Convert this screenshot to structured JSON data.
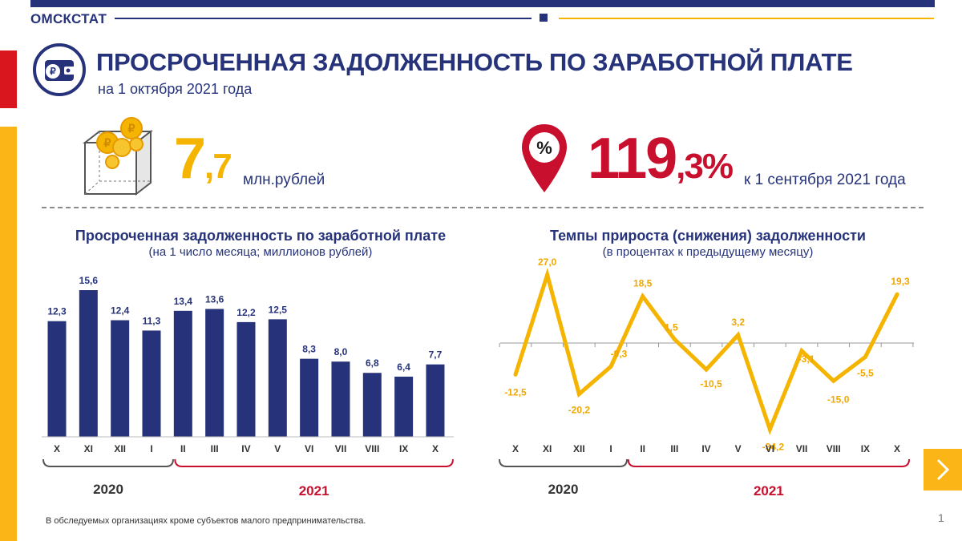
{
  "header": {
    "org": "ОМСКСТАТ"
  },
  "title": {
    "main": "ПРОСРОЧЕННАЯ ЗАДОЛЖЕННОСТЬ ПО ЗАРАБОТНОЙ ПЛАТЕ",
    "sub": "на 1 октября 2021 года"
  },
  "kpi": [
    {
      "int": "7",
      "dec": ",7",
      "unit": "млн.рублей"
    },
    {
      "int": "119",
      "dec": ",3%",
      "unit": "к 1 сентября 2021 года"
    }
  ],
  "icons": {
    "title": "wallet-ruble-icon",
    "kpi1": "coins-box-icon",
    "kpi2": "percent-pin-icon",
    "next": "chevron-right-icon"
  },
  "colors": {
    "navy": "#26337a",
    "bar": "#26337a",
    "line": "#f4b400",
    "red": "#c8102e",
    "yellow": "#fbb516"
  },
  "chart_data": [
    {
      "type": "bar",
      "title": "Просроченная задолженность по заработной плате",
      "subtitle": "(на 1 число месяца;  миллионов рублей)",
      "categories": [
        "X",
        "XI",
        "XII",
        "I",
        "II",
        "III",
        "IV",
        "V",
        "VI",
        "VII",
        "VIII",
        "IX",
        "X"
      ],
      "values": [
        12.3,
        15.6,
        12.4,
        11.3,
        13.4,
        13.6,
        12.2,
        12.5,
        8.3,
        8.0,
        6.8,
        6.4,
        7.7
      ],
      "labels": [
        "12,3",
        "15,6",
        "12,4",
        "11,3",
        "13,4",
        "13,6",
        "12,2",
        "12,5",
        "8,3",
        "8,0",
        "6,8",
        "6,4",
        "7,7"
      ],
      "ylim": [
        0,
        17
      ],
      "groups": [
        {
          "label": "2020",
          "from": 0,
          "to": 3
        },
        {
          "label": "2021",
          "from": 4,
          "to": 12
        }
      ]
    },
    {
      "type": "line",
      "title": "Темпы прироста (снижения) задолженности",
      "subtitle": "(в процентах  к предыдущему  месяцу)",
      "categories": [
        "X",
        "XI",
        "XII",
        "I",
        "II",
        "III",
        "IV",
        "V",
        "VI",
        "VII",
        "VIII",
        "IX",
        "X"
      ],
      "values": [
        -12.5,
        27.0,
        -20.2,
        -9.3,
        18.5,
        1.5,
        -10.5,
        3.2,
        -34.2,
        -3.1,
        -15.0,
        -5.5,
        19.3
      ],
      "labels": [
        "-12,5",
        "27,0",
        "-20,2",
        "-9,3",
        "18,5",
        "1,5",
        "-10,5",
        "3,2",
        "-34,2",
        "-3,1",
        "-15,0",
        "-5,5",
        "19,3"
      ],
      "ylim": [
        -40,
        30
      ],
      "groups": [
        {
          "label": "2020",
          "from": 0,
          "to": 3
        },
        {
          "label": "2021",
          "from": 4,
          "to": 12
        }
      ]
    }
  ],
  "footnote": "В обследуемых организациях кроме субъектов малого предпринимательства.",
  "page": "1"
}
